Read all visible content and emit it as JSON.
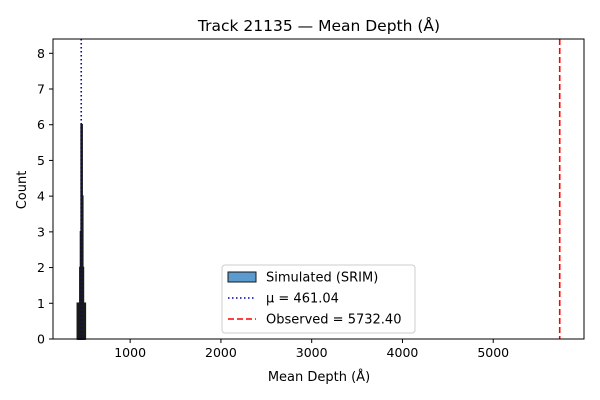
{
  "chart_data": {
    "type": "histogram",
    "title": "Track 21135 — Mean Depth (Å)",
    "xlabel": "Mean Depth (Å)",
    "ylabel": "Count",
    "xlim": [
      150,
      6000
    ],
    "ylim": [
      0,
      8.4
    ],
    "xticks": [
      1000,
      2000,
      3000,
      4000,
      5000
    ],
    "yticks": [
      0,
      1,
      2,
      3,
      4,
      5,
      6,
      7,
      8
    ],
    "grid": false,
    "legend_position": "lower center",
    "series": [
      {
        "name": "Simulated (SRIM)",
        "kind": "histogram",
        "color": "#5b9bcf",
        "edgecolor": "#1a1a1a",
        "bins": [
          {
            "x0": 418,
            "x1": 425,
            "count": 1
          },
          {
            "x0": 425,
            "x1": 432,
            "count": 1
          },
          {
            "x0": 432,
            "x1": 439,
            "count": 1
          },
          {
            "x0": 439,
            "x1": 446,
            "count": 1
          },
          {
            "x0": 446,
            "x1": 453,
            "count": 2
          },
          {
            "x0": 453,
            "x1": 460,
            "count": 3
          },
          {
            "x0": 460,
            "x1": 467,
            "count": 6
          },
          {
            "x0": 467,
            "x1": 474,
            "count": 4
          },
          {
            "x0": 474,
            "x1": 481,
            "count": 2
          },
          {
            "x0": 481,
            "x1": 488,
            "count": 1
          },
          {
            "x0": 488,
            "x1": 495,
            "count": 1
          },
          {
            "x0": 495,
            "x1": 502,
            "count": 1
          }
        ]
      },
      {
        "name": "μ = 461.04",
        "kind": "vline",
        "x": 461.04,
        "color": "#0000aa",
        "style": "dotted"
      },
      {
        "name": "Observed = 5732.40",
        "kind": "vline",
        "x": 5732.4,
        "color": "#ff0000",
        "style": "dashed"
      }
    ]
  }
}
